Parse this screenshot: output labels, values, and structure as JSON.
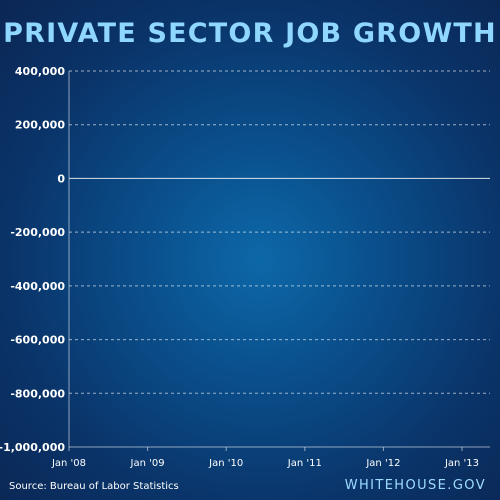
{
  "chart_data": {
    "type": "bar",
    "title": "PRIVATE SECTOR JOB GROWTH",
    "xlabel": "",
    "ylabel": "",
    "ylim": [
      -1000000,
      400000
    ],
    "yticks": [
      {
        "value": 400000,
        "label": "400,000"
      },
      {
        "value": 200000,
        "label": "200,000"
      },
      {
        "value": 0,
        "label": "0"
      },
      {
        "value": -200000,
        "label": "-200,000"
      },
      {
        "value": -400000,
        "label": "-400,000"
      },
      {
        "value": -600000,
        "label": "-600,000"
      },
      {
        "value": -800000,
        "label": "-800,000"
      },
      {
        "value": -1000000,
        "label": "-1,000,000"
      }
    ],
    "xticks": [
      "Jan '08",
      "Jan '09",
      "Jan '10",
      "Jan '11",
      "Jan '12",
      "Jan '13"
    ],
    "grid": true,
    "categories": [],
    "values": []
  },
  "source": "Source: Bureau of Labor Statistics",
  "brand": "WHITEHOUSE.GOV"
}
